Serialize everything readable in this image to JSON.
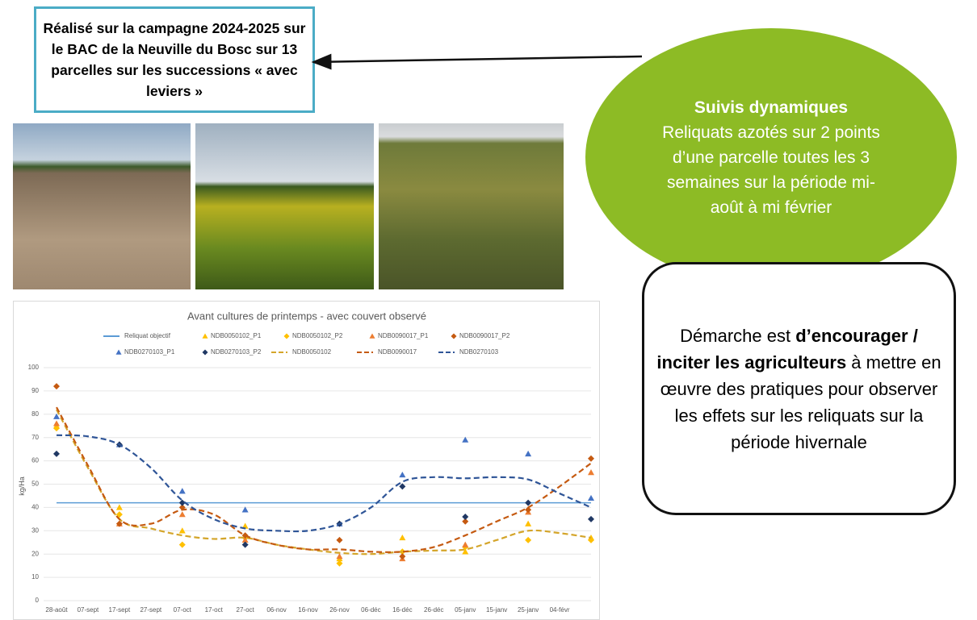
{
  "info_box": {
    "text": "Réalisé sur la campagne 2024-2025 sur le BAC de la Neuville du Bosc sur 13 parcelles sur les successions « avec leviers »"
  },
  "ellipse": {
    "title": "Suivis dynamiques",
    "text": "Reliquats azotés sur 2 points d’une parcelle toutes les 3 semaines sur la période mi-août à mi février"
  },
  "approach_box": {
    "parts": [
      "Démarche est ",
      "d’encourager / inciter les agriculteurs",
      " à mettre en œuvre des pratiques pour observer les effets sur les reliquats sur la période hivernale"
    ]
  },
  "chart_data": {
    "type": "line",
    "title": "Avant cultures de printemps - avec couvert observé",
    "y_label": "kg/Ha",
    "categories": [
      "28-août",
      "07-sept",
      "17-sept",
      "27-sept",
      "07-oct",
      "17-oct",
      "27-oct",
      "06-nov",
      "16-nov",
      "26-nov",
      "06-déc",
      "16-déc",
      "26-déc",
      "05-janv",
      "15-janv",
      "25-janv",
      "04-févr",
      null
    ],
    "ylim": [
      0,
      100
    ],
    "yticks": [
      0,
      10,
      20,
      30,
      40,
      50,
      60,
      70,
      80,
      90,
      100
    ],
    "grid": true,
    "series": [
      {
        "name": "Reliquat objectif",
        "color": "#5b9bd5",
        "marker": "line",
        "values": [
          42,
          42,
          42,
          42,
          42,
          42,
          42,
          42,
          42,
          42,
          42,
          42,
          42,
          42,
          42,
          42,
          42,
          42
        ]
      },
      {
        "name": "NDB0050102_P1",
        "color": "#ffc000",
        "marker": "triangle",
        "values": [
          75,
          null,
          40,
          null,
          30,
          null,
          32,
          null,
          null,
          18,
          null,
          27,
          null,
          21,
          null,
          33,
          null,
          27
        ]
      },
      {
        "name": "NDB0050102_P2",
        "color": "#ffc000",
        "marker": "diamond",
        "values": [
          74,
          null,
          37,
          null,
          24,
          null,
          27,
          null,
          null,
          16,
          null,
          21,
          null,
          23,
          null,
          26,
          null,
          26
        ]
      },
      {
        "name": "NDB0090017_P1",
        "color": "#ed7d31",
        "marker": "triangle",
        "values": [
          76,
          null,
          33,
          null,
          37,
          null,
          26,
          null,
          null,
          19,
          null,
          18,
          null,
          24,
          null,
          38,
          null,
          55
        ]
      },
      {
        "name": "NDB0090017_P2",
        "color": "#c55a11",
        "marker": "diamond",
        "values": [
          92,
          null,
          33,
          null,
          40,
          null,
          28,
          null,
          null,
          26,
          null,
          19,
          null,
          34,
          null,
          39,
          null,
          61
        ]
      },
      {
        "name": "NDB0270103_P1",
        "color": "#4472c4",
        "marker": "triangle",
        "values": [
          79,
          null,
          67,
          null,
          47,
          null,
          39,
          null,
          null,
          33,
          null,
          54,
          null,
          69,
          null,
          63,
          null,
          44
        ]
      },
      {
        "name": "NDB0270103_P2",
        "color": "#203864",
        "marker": "diamond",
        "values": [
          63,
          null,
          67,
          null,
          42,
          null,
          24,
          null,
          null,
          33,
          null,
          49,
          null,
          36,
          null,
          42,
          null,
          35
        ]
      },
      {
        "name": "NDB0050102",
        "color": "#d4a52a",
        "marker": "dashed",
        "values": [
          82,
          57,
          35,
          31,
          28,
          26.5,
          27,
          24,
          22,
          20.5,
          20,
          21,
          21.5,
          22,
          26,
          30,
          29,
          27
        ]
      },
      {
        "name": "NDB0090017",
        "color": "#c55a11",
        "marker": "dashed",
        "values": [
          83,
          58,
          35,
          33,
          39,
          37,
          28,
          24,
          22,
          22,
          21,
          21,
          23,
          28,
          34,
          40,
          49,
          59
        ]
      },
      {
        "name": "NDB0270103",
        "color": "#2f5597",
        "marker": "dashed",
        "values": [
          71,
          70.5,
          67,
          57,
          43,
          35,
          31,
          30,
          30,
          33,
          40,
          51,
          53,
          52.5,
          53,
          52,
          46,
          40
        ]
      }
    ]
  }
}
